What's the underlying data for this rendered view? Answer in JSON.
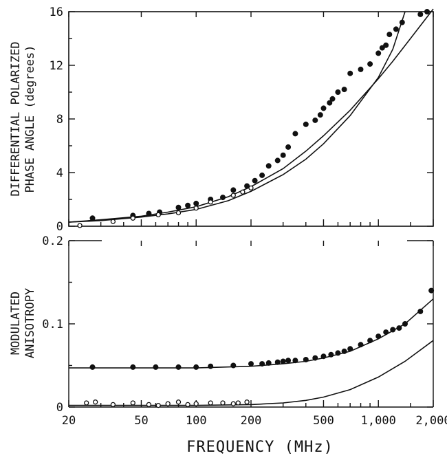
{
  "chart_data": [
    {
      "type": "scatter",
      "ylabel_line1": "DIFFERENTIAL POLARIZED",
      "ylabel_line2": "PHASE ANGLE (degrees)",
      "x_scale": "log",
      "xlim": [
        20,
        2000
      ],
      "ylim": [
        0,
        16
      ],
      "yticks": [
        0,
        4,
        8,
        12,
        16
      ],
      "series": [
        {
          "marker": "filled-circle",
          "x": [
            27,
            45,
            55,
            63,
            80,
            90,
            100,
            120,
            140,
            160,
            190,
            210,
            230,
            250,
            280,
            300,
            320,
            350,
            400,
            450,
            480,
            500,
            540,
            560,
            600,
            650,
            700,
            800,
            900,
            1000,
            1050,
            1100,
            1150,
            1250,
            1350,
            1700,
            1850
          ],
          "y": [
            0.6,
            0.8,
            0.95,
            1.05,
            1.4,
            1.55,
            1.7,
            2.0,
            2.15,
            2.7,
            3.0,
            3.4,
            3.8,
            4.5,
            4.9,
            5.3,
            5.9,
            6.9,
            7.6,
            7.9,
            8.3,
            8.8,
            9.2,
            9.5,
            10.0,
            10.2,
            11.4,
            11.7,
            12.1,
            12.9,
            13.3,
            13.5,
            14.3,
            14.7,
            15.2,
            15.8,
            16.0
          ]
        },
        {
          "marker": "open-circle",
          "x": [
            23,
            35,
            45,
            62,
            80,
            100,
            120,
            160,
            180,
            200
          ],
          "y": [
            0.05,
            0.35,
            0.6,
            0.85,
            1.0,
            1.35,
            1.8,
            2.3,
            2.55,
            2.85
          ]
        },
        {
          "marker": "line",
          "x": [
            20,
            30,
            50,
            70,
            100,
            150,
            200,
            300,
            400,
            500,
            700,
            1000,
            1200,
            1500,
            2000
          ],
          "y": [
            0.3,
            0.48,
            0.75,
            1.05,
            1.45,
            2.2,
            2.95,
            4.3,
            5.6,
            6.75,
            8.65,
            11.0,
            12.3,
            14.0,
            16.2
          ]
        },
        {
          "marker": "line",
          "x": [
            20,
            30,
            50,
            70,
            100,
            150,
            200,
            300,
            400,
            500,
            700,
            1000,
            1200,
            1400
          ],
          "y": [
            0.3,
            0.42,
            0.68,
            0.92,
            1.25,
            1.9,
            2.6,
            3.85,
            5.0,
            6.15,
            8.25,
            11.1,
            13.2,
            16.0
          ]
        }
      ]
    },
    {
      "type": "scatter",
      "ylabel_line1": "MODULATED",
      "ylabel_line2": "ANISOTROPY",
      "x_scale": "log",
      "xlim": [
        20,
        2000
      ],
      "ylim": [
        0,
        0.2
      ],
      "yticks": [
        0,
        0.1,
        0.2
      ],
      "ytick_labels": [
        "0",
        "0.1",
        "0.2"
      ],
      "xlabel": "FREQUENCY (MHz)",
      "xticks": [
        20,
        50,
        100,
        200,
        500,
        1000,
        2000
      ],
      "xtick_labels": [
        "20",
        "50",
        "100",
        "200",
        "500",
        "1,000",
        "2,000"
      ],
      "series": [
        {
          "marker": "filled-circle",
          "x": [
            27,
            45,
            60,
            80,
            100,
            120,
            160,
            200,
            230,
            250,
            280,
            300,
            320,
            350,
            400,
            450,
            500,
            550,
            600,
            650,
            700,
            800,
            900,
            1000,
            1100,
            1200,
            1300,
            1400,
            1700,
            1950
          ],
          "y": [
            0.048,
            0.048,
            0.048,
            0.048,
            0.048,
            0.049,
            0.05,
            0.052,
            0.052,
            0.053,
            0.054,
            0.055,
            0.056,
            0.056,
            0.057,
            0.059,
            0.061,
            0.063,
            0.065,
            0.067,
            0.07,
            0.075,
            0.08,
            0.085,
            0.09,
            0.093,
            0.095,
            0.1,
            0.115,
            0.14
          ]
        },
        {
          "marker": "open-circle",
          "x": [
            25,
            28,
            35,
            45,
            55,
            62,
            70,
            80,
            90,
            100,
            120,
            140,
            160,
            170,
            190
          ],
          "y": [
            0.005,
            0.006,
            0.003,
            0.005,
            0.003,
            0.002,
            0.004,
            0.006,
            0.003,
            0.004,
            0.005,
            0.005,
            0.004,
            0.005,
            0.006
          ]
        },
        {
          "marker": "line",
          "x": [
            20,
            100,
            200,
            300,
            400,
            500,
            700,
            1000,
            1400,
            2000
          ],
          "y": [
            0.047,
            0.047,
            0.049,
            0.052,
            0.055,
            0.059,
            0.067,
            0.082,
            0.1,
            0.13
          ]
        },
        {
          "marker": "line",
          "x": [
            20,
            100,
            200,
            300,
            400,
            500,
            700,
            1000,
            1400,
            2000
          ],
          "y": [
            0.002,
            0.002,
            0.003,
            0.005,
            0.008,
            0.012,
            0.021,
            0.036,
            0.055,
            0.08
          ]
        }
      ]
    }
  ]
}
